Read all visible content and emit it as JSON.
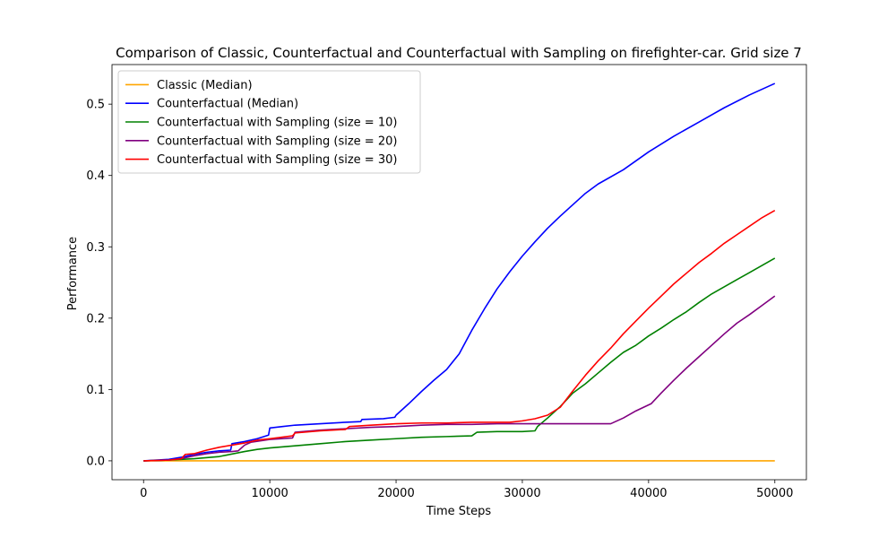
{
  "chart_data": {
    "type": "line",
    "title": "Comparison of Classic, Counterfactual and Counterfactual with Sampling on firefighter-car. Grid size 7",
    "xlabel": "Time Steps",
    "ylabel": "Performance",
    "xlim": [
      -2500,
      52500
    ],
    "ylim": [
      -0.0265,
      0.5555
    ],
    "xticks": [
      0,
      10000,
      20000,
      30000,
      40000,
      50000
    ],
    "xtick_labels": [
      "0",
      "10000",
      "20000",
      "30000",
      "40000",
      "50000"
    ],
    "yticks": [
      0.0,
      0.1,
      0.2,
      0.3,
      0.4,
      0.5
    ],
    "ytick_labels": [
      "0.0",
      "0.1",
      "0.2",
      "0.3",
      "0.4",
      "0.5"
    ],
    "grid": false,
    "legend_position": "top-left",
    "series": [
      {
        "name": "Classic (Median)",
        "color": "#ffa500",
        "x": [
          0,
          50000
        ],
        "y": [
          0.0,
          0.0
        ]
      },
      {
        "name": "Counterfactual (Median)",
        "color": "#0000ff",
        "x": [
          0,
          2000,
          3000,
          4000,
          5000,
          6000,
          6900,
          7000,
          8000,
          9000,
          9900,
          10000,
          11000,
          12000,
          14000,
          16000,
          17200,
          17300,
          19000,
          19900,
          20000,
          21000,
          22000,
          23000,
          24000,
          25000,
          26000,
          27000,
          28000,
          29000,
          30000,
          31000,
          32000,
          33000,
          34000,
          35000,
          36000,
          38000,
          40000,
          42000,
          44000,
          46000,
          48000,
          50000
        ],
        "y": [
          0.0,
          0.002,
          0.005,
          0.009,
          0.012,
          0.014,
          0.015,
          0.024,
          0.027,
          0.031,
          0.036,
          0.046,
          0.048,
          0.05,
          0.052,
          0.054,
          0.055,
          0.058,
          0.059,
          0.061,
          0.064,
          0.08,
          0.097,
          0.113,
          0.128,
          0.15,
          0.183,
          0.213,
          0.241,
          0.265,
          0.287,
          0.307,
          0.326,
          0.343,
          0.359,
          0.375,
          0.388,
          0.408,
          0.433,
          0.455,
          0.475,
          0.495,
          0.513,
          0.529
        ]
      },
      {
        "name": "Counterfactual with Sampling (size = 10)",
        "color": "#008000",
        "x": [
          0,
          2000,
          4000,
          6000,
          8000,
          9000,
          10000,
          12000,
          14000,
          16000,
          18000,
          20000,
          22000,
          24000,
          26000,
          26400,
          28000,
          30000,
          31000,
          31200,
          32000,
          33000,
          34000,
          35000,
          36000,
          37000,
          38000,
          39000,
          40000,
          41000,
          42000,
          43000,
          44000,
          45000,
          46000,
          47000,
          48000,
          49000,
          50000
        ],
        "y": [
          0.0,
          0.001,
          0.003,
          0.006,
          0.013,
          0.016,
          0.018,
          0.021,
          0.024,
          0.027,
          0.029,
          0.031,
          0.033,
          0.034,
          0.035,
          0.04,
          0.041,
          0.041,
          0.042,
          0.048,
          0.06,
          0.076,
          0.095,
          0.108,
          0.123,
          0.138,
          0.152,
          0.162,
          0.175,
          0.186,
          0.198,
          0.209,
          0.222,
          0.234,
          0.244,
          0.254,
          0.264,
          0.274,
          0.284
        ]
      },
      {
        "name": "Counterfactual with Sampling (size = 20)",
        "color": "#800080",
        "x": [
          0,
          2000,
          3000,
          4000,
          5000,
          6000,
          7000,
          7500,
          8000,
          8500,
          10000,
          11800,
          12000,
          14000,
          16000,
          18000,
          20000,
          22000,
          24000,
          26000,
          28000,
          30000,
          32000,
          34000,
          36000,
          37000,
          38000,
          39000,
          40200,
          41000,
          42000,
          43000,
          44000,
          45000,
          46000,
          47000,
          48000,
          49000,
          50000
        ],
        "y": [
          0.0,
          0.001,
          0.003,
          0.007,
          0.01,
          0.012,
          0.013,
          0.014,
          0.022,
          0.026,
          0.03,
          0.032,
          0.04,
          0.043,
          0.045,
          0.047,
          0.048,
          0.05,
          0.051,
          0.051,
          0.052,
          0.052,
          0.052,
          0.052,
          0.052,
          0.052,
          0.06,
          0.07,
          0.08,
          0.095,
          0.113,
          0.13,
          0.146,
          0.162,
          0.178,
          0.193,
          0.205,
          0.218,
          0.231
        ]
      },
      {
        "name": "Counterfactual with Sampling (size = 30)",
        "color": "#ff0000",
        "x": [
          0,
          2000,
          3000,
          3300,
          4000,
          5000,
          6000,
          7000,
          8000,
          9000,
          10000,
          11800,
          12000,
          14000,
          16000,
          16300,
          18000,
          20000,
          22000,
          24000,
          26000,
          28000,
          29000,
          30000,
          31000,
          32000,
          33000,
          34000,
          35000,
          36000,
          37000,
          38000,
          39000,
          40000,
          41000,
          42000,
          43000,
          44000,
          45000,
          46000,
          47000,
          48000,
          49000,
          50000
        ],
        "y": [
          0.0,
          0.001,
          0.003,
          0.009,
          0.01,
          0.015,
          0.019,
          0.022,
          0.025,
          0.029,
          0.031,
          0.035,
          0.039,
          0.042,
          0.044,
          0.048,
          0.05,
          0.052,
          0.053,
          0.053,
          0.054,
          0.054,
          0.054,
          0.056,
          0.059,
          0.064,
          0.075,
          0.098,
          0.12,
          0.14,
          0.158,
          0.178,
          0.196,
          0.214,
          0.231,
          0.248,
          0.263,
          0.278,
          0.291,
          0.305,
          0.317,
          0.329,
          0.341,
          0.351
        ]
      }
    ]
  }
}
